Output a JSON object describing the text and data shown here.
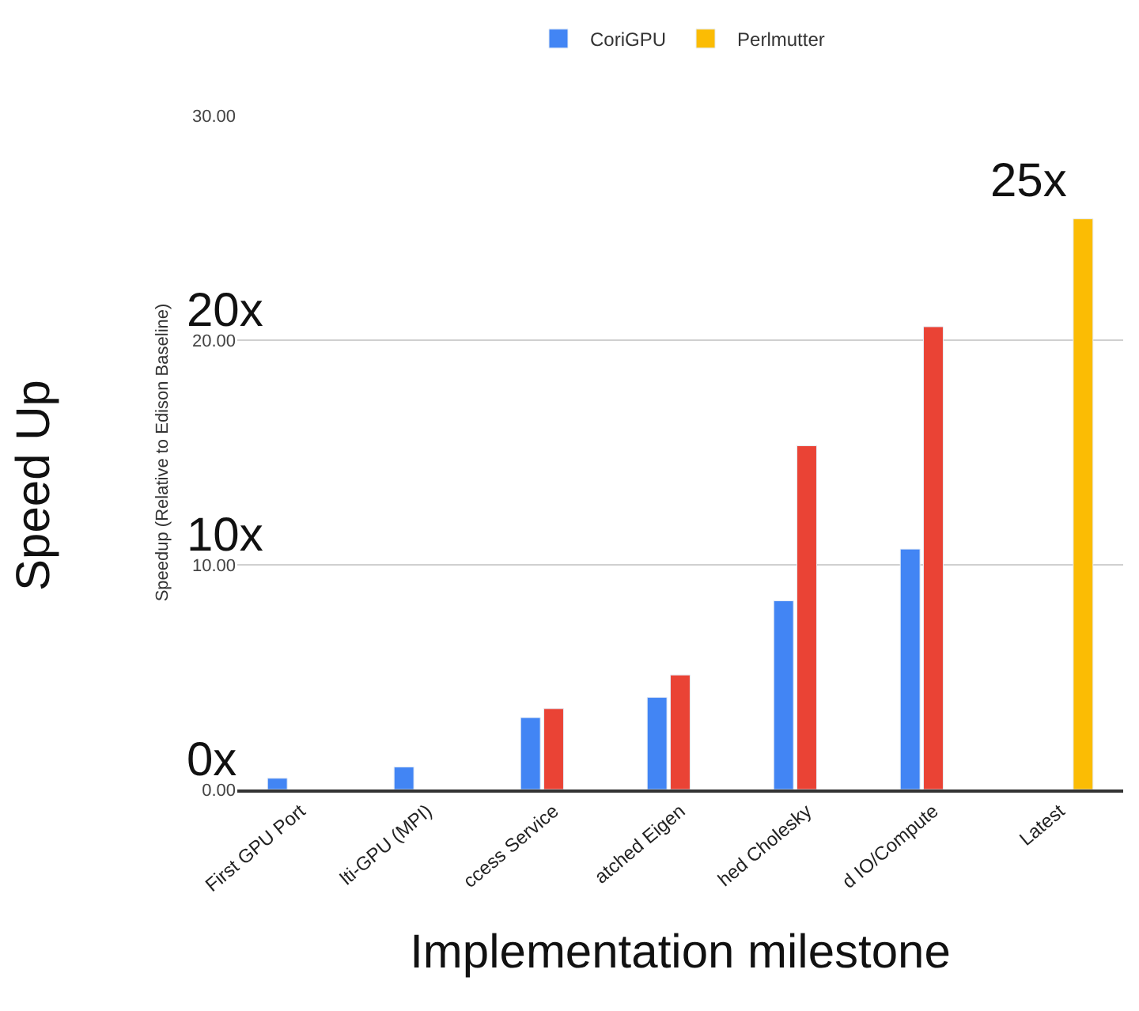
{
  "chart_data": {
    "type": "bar",
    "xlabel": "Implementation milestone",
    "ylabel": "Speedup (Relative to Edison Baseline)",
    "categories": [
      "First GPU Port",
      "lti-GPU (MPI)",
      "ccess Service",
      "atched Eigen",
      "hed Cholesky",
      "d IO/Compute",
      "Latest"
    ],
    "series": [
      {
        "name": "CoriGPU",
        "color": "#4285f4",
        "values": [
          0.5,
          1.0,
          3.2,
          4.1,
          8.4,
          10.7,
          null
        ]
      },
      {
        "color": "#ea4335",
        "values": [
          null,
          null,
          3.6,
          5.1,
          15.3,
          20.6,
          null
        ]
      },
      {
        "name": "Perlmutter",
        "color": "#fbbc04",
        "values": [
          null,
          null,
          null,
          null,
          null,
          null,
          25.4
        ]
      }
    ],
    "ylim": [
      0,
      30
    ],
    "yticks": [
      {
        "value": 0,
        "label": "0.00"
      },
      {
        "value": 10,
        "label": "10.00"
      },
      {
        "value": 20,
        "label": "20.00"
      },
      {
        "value": 30,
        "label": "30.00"
      }
    ],
    "grid": "y",
    "legend": "top",
    "annotations": [
      "Speed Up",
      "0x",
      "10x",
      "20x",
      "25x"
    ]
  }
}
